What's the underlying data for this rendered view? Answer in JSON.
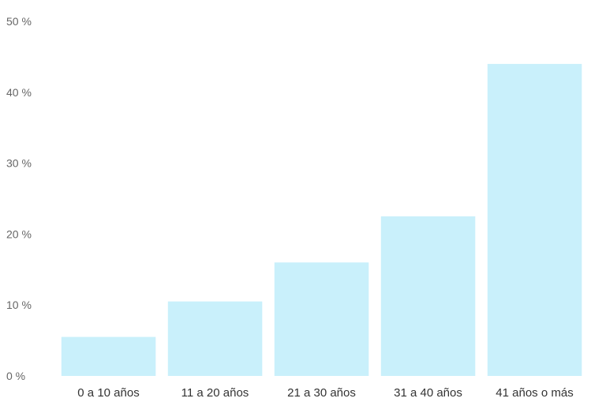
{
  "chart_data": {
    "type": "bar",
    "categories": [
      "0 a 10 años",
      "11 a 20 años",
      "21 a 30 años",
      "31 a 40 años",
      "41 años o más"
    ],
    "values": [
      5.5,
      10.5,
      16,
      22.5,
      44
    ],
    "ylim": [
      0,
      50
    ],
    "yticks": [
      0,
      10,
      20,
      30,
      40,
      50
    ],
    "ytick_labels": [
      "0 %",
      "10 %",
      "20 %",
      "30 %",
      "40 %",
      "50 %"
    ],
    "bar_color": "#c9f0fb",
    "grid": false,
    "legend": "none"
  }
}
